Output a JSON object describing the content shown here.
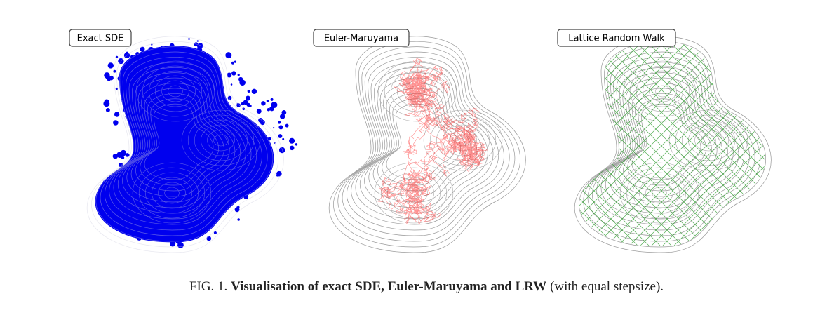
{
  "figure": {
    "panels": [
      {
        "label": "Exact SDE"
      },
      {
        "label": "Euler-Maruyama"
      },
      {
        "label": "Lattice Random Walk"
      }
    ],
    "caption": {
      "number": "FIG. 1.",
      "title": "Visualisation of exact SDE, Euler-Maruyama and LRW",
      "note": "(with equal stepsize)."
    }
  }
}
